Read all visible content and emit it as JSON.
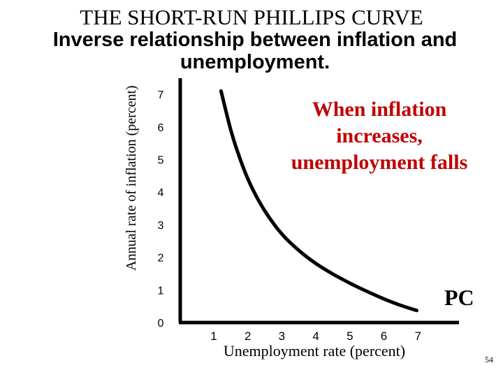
{
  "title": "THE SHORT-RUN PHILLIPS CURVE",
  "subtitle": "Inverse relationship between inflation and unemployment.",
  "annotation": {
    "lines": [
      "When inflation",
      "increases,",
      "unemployment falls"
    ],
    "color": "#c00000"
  },
  "slide_number": "54",
  "chart_data": {
    "type": "line",
    "title": "",
    "xlabel": "Unemployment rate (percent)",
    "ylabel": "Annual rate of inflation (percent)",
    "x_ticks": [
      "1",
      "2",
      "3",
      "4",
      "5",
      "6",
      "7"
    ],
    "y_ticks": [
      "0",
      "1",
      "2",
      "3",
      "4",
      "5",
      "6",
      "7"
    ],
    "xlim": [
      0,
      7.3
    ],
    "ylim": [
      0,
      7.3
    ],
    "grid": false,
    "series": [
      {
        "name": "PC",
        "color": "#000000",
        "x": [
          1.2,
          1.5,
          1.8,
          2.1,
          2.5,
          3.0,
          3.5,
          4.0,
          4.5,
          5.0,
          5.5,
          6.0,
          6.5,
          6.95
        ],
        "y": [
          7.1,
          5.85,
          4.9,
          4.15,
          3.4,
          2.7,
          2.2,
          1.8,
          1.48,
          1.2,
          0.95,
          0.72,
          0.52,
          0.37
        ]
      }
    ]
  }
}
